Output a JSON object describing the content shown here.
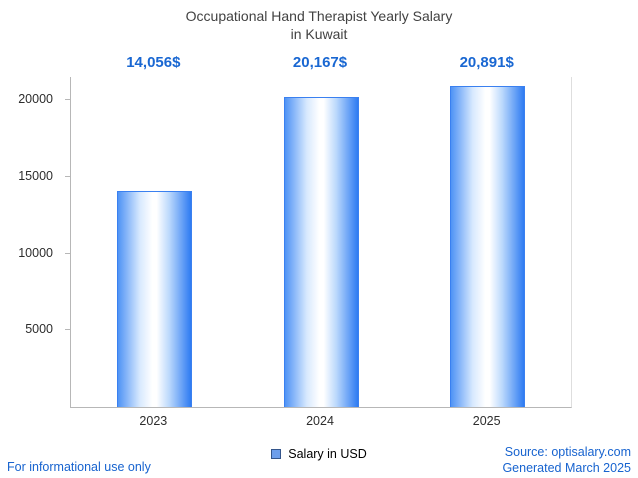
{
  "title": {
    "line1": "Occupational Hand Therapist Yearly Salary",
    "line2": "in Kuwait"
  },
  "chart_data": {
    "type": "bar",
    "title": "Occupational Hand Therapist Yearly Salary in Kuwait",
    "categories": [
      "2023",
      "2024",
      "2025"
    ],
    "series": [
      {
        "name": "Salary in USD",
        "values": [
          14056,
          20167,
          20891
        ]
      }
    ],
    "value_labels": [
      "14,056$",
      "20,167$",
      "20,891$"
    ],
    "xlabel": "",
    "ylabel": "",
    "ylim": [
      0,
      21500
    ],
    "yticks": [
      5000,
      10000,
      15000,
      20000
    ],
    "grid": false,
    "legend_position": "bottom"
  },
  "legend": {
    "label": "Salary in USD"
  },
  "footer": {
    "left": "For informational use only",
    "source": "Source: optisalary.com",
    "generated": "Generated March 2025"
  },
  "colors": {
    "value_label_blue": "#1967d2",
    "link_blue": "#1763cf",
    "bar_edge": "#3a80f0",
    "bar_fill_left": "#4f93f5",
    "bar_fill_center": "#ffffff",
    "bar_fill_right": "#2e7bf2",
    "axis_line": "#b7b7b7",
    "legend_swatch": "#6d9eeb",
    "title_text": "#424242"
  }
}
